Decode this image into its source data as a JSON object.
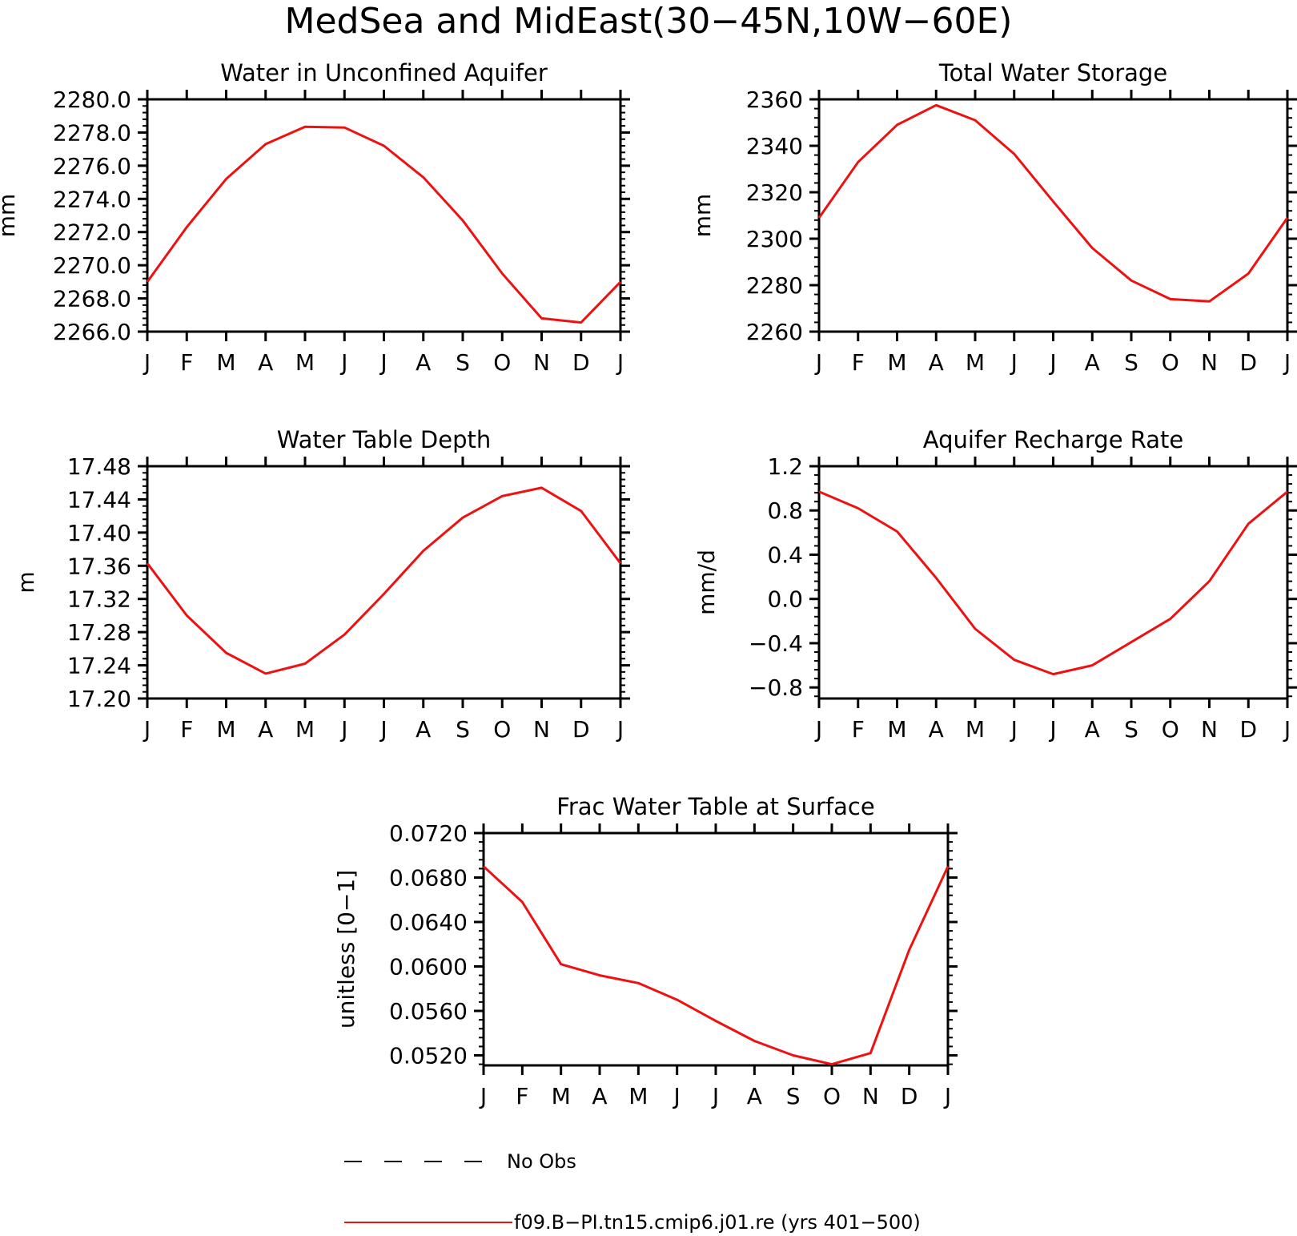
{
  "figure": {
    "title": "MedSea and MidEast(30−45N,10W−60E)",
    "line_color": "#ee1111",
    "legend": [
      {
        "label": "No Obs",
        "style": "dashed",
        "color": "#000000"
      },
      {
        "label": "f09.B−PI.tn15.cmip6.j01.re (yrs 401−500)",
        "style": "solid",
        "color": "#ee1111"
      }
    ]
  },
  "chart_data": [
    {
      "type": "line",
      "title": "Water in Unconfined Aquifer",
      "ylabel": "mm",
      "categories": [
        "J",
        "F",
        "M",
        "A",
        "M",
        "J",
        "J",
        "A",
        "S",
        "O",
        "N",
        "D",
        "J"
      ],
      "ylim": [
        2266.0,
        2280.0
      ],
      "yticks": [
        "2266.0",
        "2268.0",
        "2270.0",
        "2272.0",
        "2274.0",
        "2276.0",
        "2278.0",
        "2280.0"
      ],
      "series": [
        {
          "values": [
            2269.0,
            2272.3,
            2275.2,
            2277.3,
            2278.35,
            2278.3,
            2277.2,
            2275.3,
            2272.7,
            2269.5,
            2266.8,
            2266.55,
            2269.0
          ]
        }
      ]
    },
    {
      "type": "line",
      "title": "Total Water Storage",
      "ylabel": "mm",
      "categories": [
        "J",
        "F",
        "M",
        "A",
        "M",
        "J",
        "J",
        "A",
        "S",
        "O",
        "N",
        "D",
        "J"
      ],
      "ylim": [
        2260,
        2360
      ],
      "yticks": [
        "2260",
        "2280",
        "2300",
        "2320",
        "2340",
        "2360"
      ],
      "series": [
        {
          "values": [
            2309,
            2333,
            2349,
            2357.5,
            2351,
            2336.5,
            2316,
            2296,
            2282,
            2274,
            2273,
            2285,
            2309
          ]
        }
      ]
    },
    {
      "type": "line",
      "title": "Water Table Depth",
      "ylabel": "m",
      "categories": [
        "J",
        "F",
        "M",
        "A",
        "M",
        "J",
        "J",
        "A",
        "S",
        "O",
        "N",
        "D",
        "J"
      ],
      "ylim": [
        17.2,
        17.48
      ],
      "yticks": [
        "17.20",
        "17.24",
        "17.28",
        "17.32",
        "17.36",
        "17.40",
        "17.44",
        "17.48"
      ],
      "series": [
        {
          "values": [
            17.363,
            17.3,
            17.255,
            17.23,
            17.242,
            17.277,
            17.326,
            17.378,
            17.418,
            17.444,
            17.454,
            17.426,
            17.363
          ]
        }
      ]
    },
    {
      "type": "line",
      "title": "Aquifer Recharge Rate",
      "ylabel": "mm/d",
      "categories": [
        "J",
        "F",
        "M",
        "A",
        "M",
        "J",
        "J",
        "A",
        "S",
        "O",
        "N",
        "D",
        "J"
      ],
      "ylim": [
        -0.9,
        1.2
      ],
      "yticks": [
        "−0.8",
        "−0.4",
        "0.0",
        "0.4",
        "0.8",
        "1.2"
      ],
      "ytick_values": [
        -0.8,
        -0.4,
        0.0,
        0.4,
        0.8,
        1.2
      ],
      "series": [
        {
          "values": [
            0.97,
            0.82,
            0.61,
            0.19,
            -0.27,
            -0.55,
            -0.68,
            -0.6,
            -0.39,
            -0.18,
            0.16,
            0.68,
            0.97
          ]
        }
      ]
    },
    {
      "type": "line",
      "title": "Frac Water Table at Surface",
      "ylabel": "unitless [0−1]",
      "categories": [
        "J",
        "F",
        "M",
        "A",
        "M",
        "J",
        "J",
        "A",
        "S",
        "O",
        "N",
        "D",
        "J"
      ],
      "ylim": [
        0.0511,
        0.072
      ],
      "yticks": [
        "0.0520",
        "0.0560",
        "0.0600",
        "0.0640",
        "0.0680",
        "0.0720"
      ],
      "ytick_values": [
        0.052,
        0.056,
        0.06,
        0.064,
        0.068,
        0.072
      ],
      "series": [
        {
          "values": [
            0.069,
            0.0658,
            0.0602,
            0.0592,
            0.0585,
            0.057,
            0.0551,
            0.0533,
            0.052,
            0.0512,
            0.0522,
            0.0615,
            0.069
          ]
        }
      ]
    }
  ]
}
